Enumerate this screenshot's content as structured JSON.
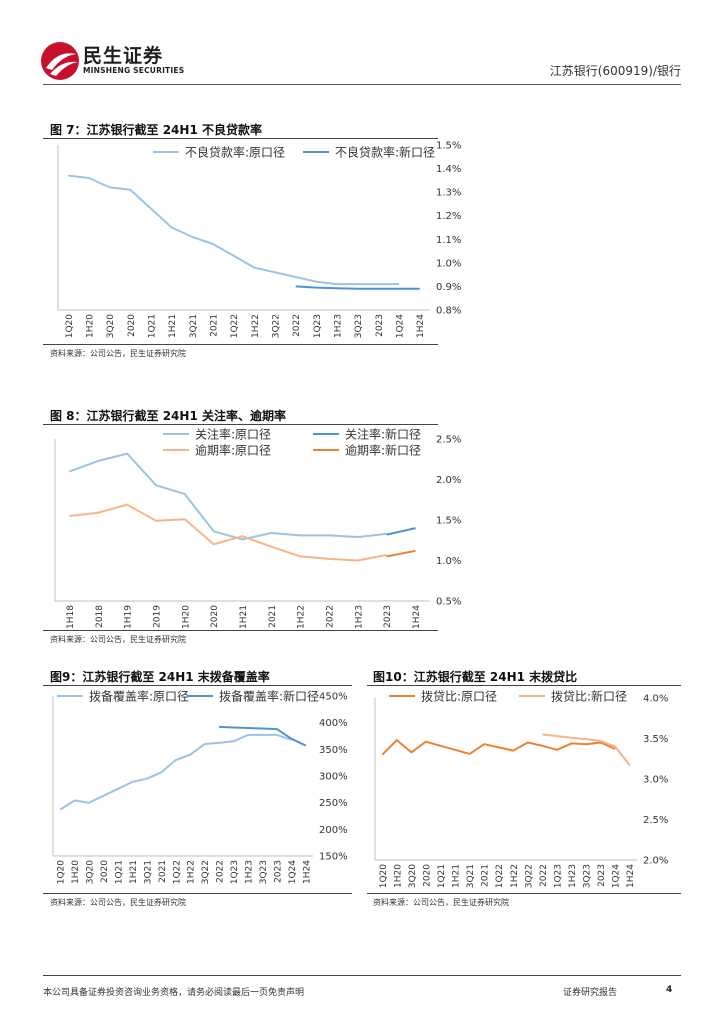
{
  "header": {
    "brand_cn": "民生证券",
    "brand_en": "MINSHENG SECURITIES",
    "report_tag": "江苏银行(600919)/银行"
  },
  "colors": {
    "light_blue": "#9CC3E6",
    "dark_blue": "#4F93D0",
    "light_orange": "#F7B48A",
    "dark_orange": "#EB8332",
    "brand_red": "#C8102E"
  },
  "figures": {
    "fig7": {
      "title": "图 7：江苏银行截至 24H1 不良贷款率",
      "source": "资料来源：公司公告，民生证券研究院"
    },
    "fig8": {
      "title": "图 8：江苏银行截至 24H1 关注率、逾期率",
      "source": "资料来源：公司公告，民生证券研究院"
    },
    "fig9": {
      "title": "图9：江苏银行截至 24H1 末拨备覆盖率",
      "source": "资料来源：公司公告，民生证券研究院"
    },
    "fig10": {
      "title": "图10：江苏银行截至 24H1 末拨贷比",
      "source": "资料来源：公司公告，民生证券研究院"
    }
  },
  "footer": {
    "disclaimer": "本公司具备证券投资咨询业务资格，请务必阅读最后一页免责声明",
    "report_type": "证券研究报告",
    "page_number": "4"
  },
  "chart_data": [
    {
      "id": "fig7",
      "type": "line",
      "title": "不良贷款率",
      "categories": [
        "1Q20",
        "1H20",
        "3Q20",
        "2020",
        "1Q21",
        "1H21",
        "3Q21",
        "2021",
        "1Q22",
        "1H22",
        "3Q22",
        "2022",
        "1Q23",
        "1H23",
        "3Q23",
        "2023",
        "1Q24",
        "1H24"
      ],
      "y_range": [
        0.8,
        1.5
      ],
      "y_ticks": [
        0.8,
        0.9,
        1.0,
        1.1,
        1.2,
        1.3,
        1.4,
        1.5
      ],
      "y_tick_labels": [
        "0.8%",
        "0.9%",
        "1.0%",
        "1.1%",
        "1.2%",
        "1.3%",
        "1.4%",
        "1.5%"
      ],
      "y_axis_side": "right",
      "legend_position": "top",
      "series": [
        {
          "name": "不良贷款率:原口径",
          "color": "#9CC3E6",
          "values": [
            1.37,
            1.36,
            1.32,
            1.31,
            1.23,
            1.15,
            1.11,
            1.08,
            1.03,
            0.98,
            0.96,
            0.94,
            0.92,
            0.91,
            0.91,
            0.91,
            0.91,
            null
          ]
        },
        {
          "name": "不良贷款率:新口径",
          "color": "#4F93D0",
          "values": [
            null,
            null,
            null,
            null,
            null,
            null,
            null,
            null,
            null,
            null,
            null,
            0.9,
            0.895,
            0.892,
            0.89,
            0.89,
            0.89,
            0.89
          ]
        }
      ]
    },
    {
      "id": "fig8",
      "type": "line",
      "title": "关注率、逾期率",
      "categories": [
        "1H18",
        "2018",
        "1H19",
        "2019",
        "1H20",
        "2020",
        "1H21",
        "2021",
        "1H22",
        "2022",
        "1H23",
        "2023",
        "1H24"
      ],
      "y_range": [
        0.5,
        2.5
      ],
      "y_ticks": [
        0.5,
        1.0,
        1.5,
        2.0,
        2.5
      ],
      "y_tick_labels": [
        "0.5%",
        "1.0%",
        "1.5%",
        "2.0%",
        "2.5%"
      ],
      "y_axis_side": "right",
      "legend_position": "top",
      "series": [
        {
          "name": "关注率:原口径",
          "color": "#9CC3E6",
          "values": [
            2.1,
            2.23,
            2.32,
            1.93,
            1.82,
            1.36,
            1.26,
            1.34,
            1.31,
            1.31,
            1.29,
            1.33,
            null
          ]
        },
        {
          "name": "关注率:新口径",
          "color": "#4F93D0",
          "values": [
            null,
            null,
            null,
            null,
            null,
            null,
            null,
            null,
            null,
            null,
            null,
            1.32,
            1.4
          ]
        },
        {
          "name": "逾期率:原口径",
          "color": "#F7B48A",
          "values": [
            1.55,
            1.59,
            1.69,
            1.49,
            1.51,
            1.2,
            1.3,
            1.17,
            1.05,
            1.02,
            1.0,
            1.07,
            null
          ]
        },
        {
          "name": "逾期率:新口径",
          "color": "#EB8332",
          "values": [
            null,
            null,
            null,
            null,
            null,
            null,
            null,
            null,
            null,
            null,
            null,
            1.05,
            1.12
          ]
        }
      ]
    },
    {
      "id": "fig9",
      "type": "line",
      "title": "拨备覆盖率",
      "categories": [
        "1Q20",
        "1H20",
        "3Q20",
        "2020",
        "1Q21",
        "1H21",
        "3Q21",
        "2021",
        "1Q22",
        "1H22",
        "3Q22",
        "2022",
        "1Q23",
        "1H23",
        "3Q23",
        "2023",
        "1Q24",
        "1H24"
      ],
      "y_range": [
        150,
        450
      ],
      "y_ticks": [
        150,
        200,
        250,
        300,
        350,
        400,
        450
      ],
      "y_tick_labels": [
        "150%",
        "200%",
        "250%",
        "300%",
        "350%",
        "400%",
        "450%"
      ],
      "y_axis_side": "right",
      "legend_position": "top",
      "series": [
        {
          "name": "拨备覆盖率:原口径",
          "color": "#9CC3E6",
          "values": [
            237,
            254,
            250,
            263,
            276,
            289,
            295,
            307,
            330,
            340,
            360,
            362,
            365,
            377,
            377,
            377,
            368,
            null
          ]
        },
        {
          "name": "拨备覆盖率:新口径",
          "color": "#4F93D0",
          "values": [
            null,
            null,
            null,
            null,
            null,
            null,
            null,
            null,
            null,
            null,
            null,
            392,
            391,
            390,
            389,
            388,
            370,
            357
          ]
        }
      ]
    },
    {
      "id": "fig10",
      "type": "line",
      "title": "拨贷比",
      "categories": [
        "1Q20",
        "1H20",
        "3Q20",
        "2020",
        "1Q21",
        "1H21",
        "3Q21",
        "2021",
        "1Q22",
        "1H22",
        "3Q22",
        "2022",
        "1Q23",
        "1H23",
        "3Q23",
        "2023",
        "1Q24",
        "1H24"
      ],
      "y_range": [
        2.0,
        4.0
      ],
      "y_ticks": [
        2.0,
        2.5,
        3.0,
        3.5,
        4.0
      ],
      "y_tick_labels": [
        "2.0%",
        "2.5%",
        "3.0%",
        "3.5%",
        "4.0%"
      ],
      "y_axis_side": "right",
      "legend_position": "top",
      "series": [
        {
          "name": "拨贷比:原口径",
          "color": "#EB8332",
          "values": [
            3.3,
            3.48,
            3.33,
            3.46,
            3.41,
            3.36,
            3.31,
            3.43,
            3.39,
            3.35,
            3.45,
            3.41,
            3.36,
            3.44,
            3.43,
            3.45,
            3.37,
            null
          ]
        },
        {
          "name": "拨贷比:新口径",
          "color": "#F7B48A",
          "values": [
            null,
            null,
            null,
            null,
            null,
            null,
            null,
            null,
            null,
            null,
            null,
            3.55,
            3.53,
            3.51,
            3.49,
            3.47,
            3.4,
            3.17
          ]
        }
      ]
    }
  ]
}
